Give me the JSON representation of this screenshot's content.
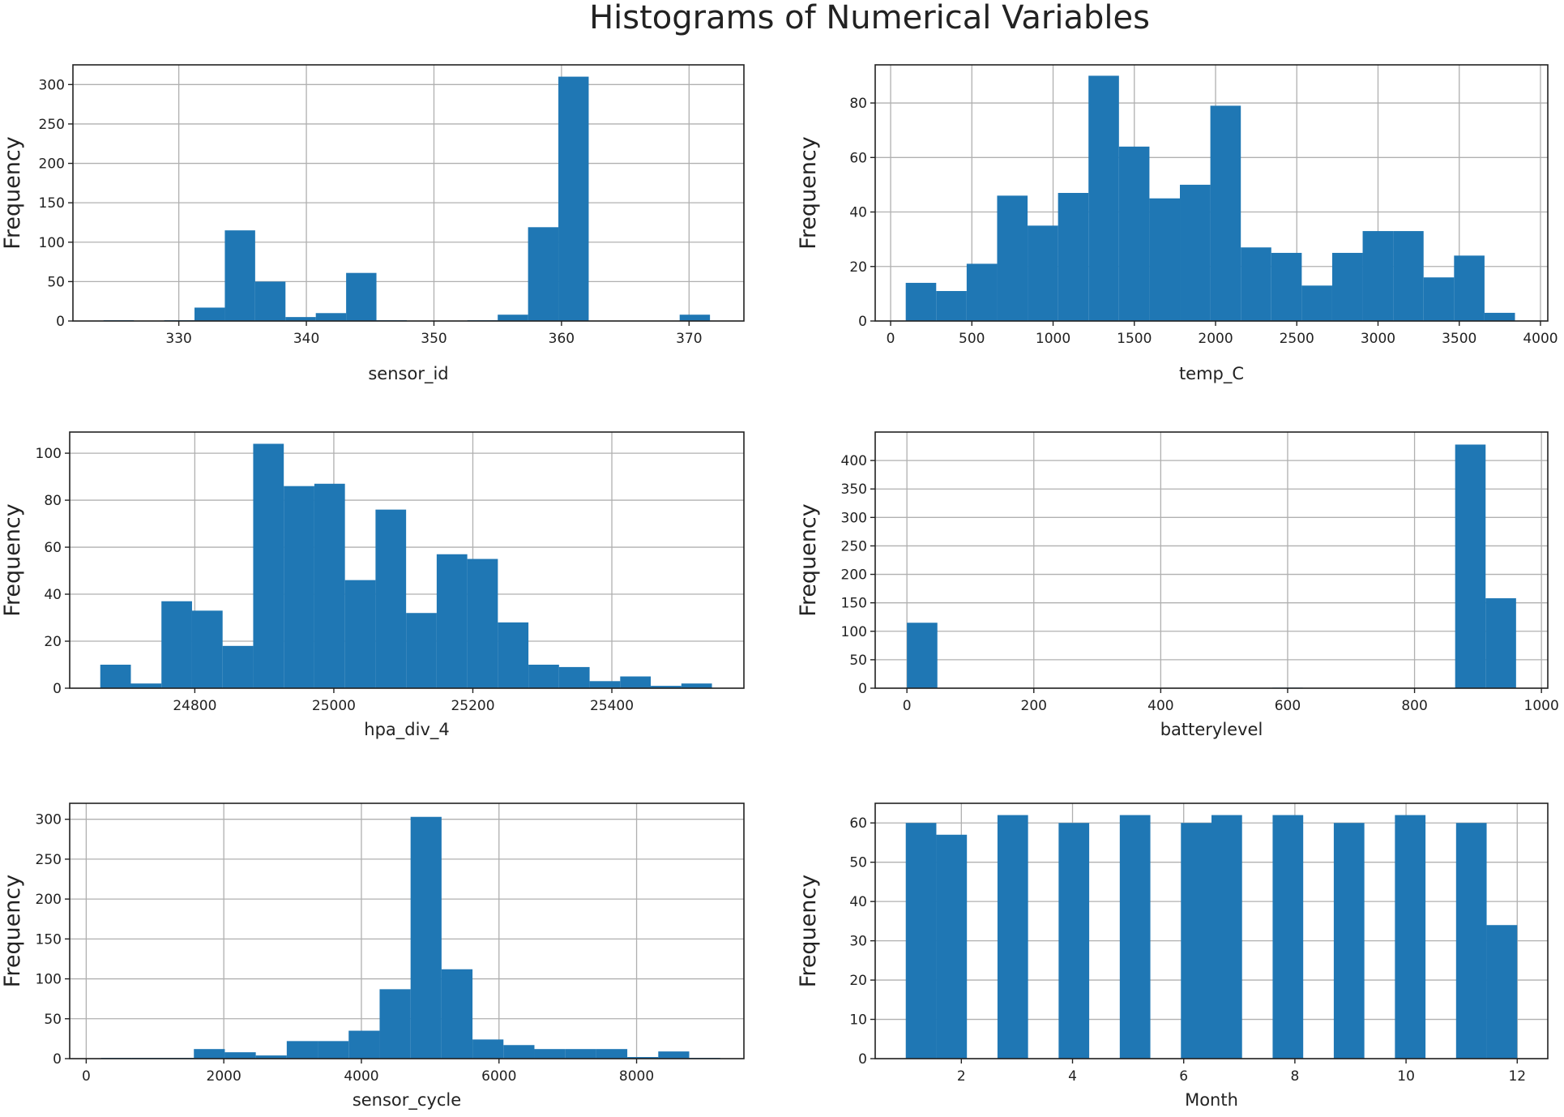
{
  "figure_title": "Histograms of Numerical Variables",
  "colors": {
    "bar": "#1f77b4",
    "grid": "#b0b0b0",
    "frame": "#222222",
    "background": "#ffffff"
  },
  "chart_data": [
    {
      "type": "bar",
      "xlabel": "sensor_id",
      "ylabel": "Frequency",
      "grid": true,
      "xlim": [
        321.7,
        374.3
      ],
      "ylim": [
        0,
        325
      ],
      "xticks": [
        330,
        340,
        350,
        360,
        370
      ],
      "yticks": [
        0,
        50,
        100,
        150,
        200,
        250,
        300
      ],
      "bin_start": 324.1,
      "bin_width": 2.377,
      "counts": [
        1,
        0,
        1,
        17,
        115,
        50,
        5,
        10,
        61,
        1,
        0,
        0,
        1,
        8,
        119,
        310,
        0,
        0,
        0,
        8
      ]
    },
    {
      "type": "bar",
      "xlabel": "temp_C",
      "ylabel": "Frequency",
      "grid": true,
      "xlim": [
        -95,
        4045
      ],
      "ylim": [
        0,
        94
      ],
      "xticks": [
        0,
        500,
        1000,
        1500,
        2000,
        2500,
        3000,
        3500,
        4000
      ],
      "yticks": [
        0,
        20,
        40,
        60,
        80
      ],
      "bin_start": 93,
      "bin_width": 187.5,
      "counts": [
        14,
        11,
        21,
        46,
        35,
        47,
        90,
        64,
        45,
        50,
        79,
        27,
        25,
        13,
        25,
        33,
        33,
        16,
        24,
        3
      ]
    },
    {
      "type": "bar",
      "xlabel": "hpa_div_4",
      "ylabel": "Frequency",
      "grid": true,
      "xlim": [
        24620,
        25590
      ],
      "ylim": [
        0,
        109
      ],
      "xticks": [
        24800,
        25000,
        25200,
        25400
      ],
      "yticks": [
        0,
        20,
        40,
        60,
        80,
        100
      ],
      "bin_start": 24664,
      "bin_width": 44,
      "counts": [
        10,
        2,
        37,
        33,
        18,
        104,
        86,
        87,
        46,
        76,
        32,
        57,
        55,
        28,
        10,
        9,
        3,
        5,
        1,
        2
      ]
    },
    {
      "type": "bar",
      "xlabel": "batterylevel",
      "ylabel": "Frequency",
      "grid": true,
      "xlim": [
        -50,
        1010
      ],
      "ylim": [
        0,
        450
      ],
      "xticks": [
        0,
        200,
        400,
        600,
        800,
        1000
      ],
      "yticks": [
        0,
        50,
        100,
        150,
        200,
        250,
        300,
        350,
        400
      ],
      "bin_start": 0,
      "bin_width": 48,
      "counts": [
        115,
        0,
        0,
        0,
        0,
        0,
        0,
        0,
        0,
        0,
        0,
        0,
        1,
        0,
        0,
        0,
        0,
        0,
        428,
        158
      ]
    },
    {
      "type": "bar",
      "xlabel": "sensor_cycle",
      "ylabel": "Frequency",
      "grid": true,
      "xlim": [
        -240,
        9560
      ],
      "ylim": [
        0,
        320
      ],
      "xticks": [
        0,
        2000,
        4000,
        6000,
        8000
      ],
      "yticks": [
        0,
        50,
        100,
        150,
        200,
        250,
        300
      ],
      "bin_start": 215,
      "bin_width": 450,
      "counts": [
        1,
        1,
        1,
        12,
        8,
        4,
        22,
        22,
        35,
        87,
        303,
        112,
        24,
        17,
        12,
        12,
        12,
        2,
        9,
        1
      ]
    },
    {
      "type": "bar",
      "xlabel": "Month",
      "ylabel": "Frequency",
      "grid": true,
      "xlim": [
        0.45,
        12.55
      ],
      "ylim": [
        0,
        65
      ],
      "xticks": [
        2,
        4,
        6,
        8,
        10,
        12
      ],
      "yticks": [
        0,
        10,
        20,
        30,
        40,
        50,
        60
      ],
      "bin_start": 1,
      "bin_width": 0.55,
      "counts": [
        60,
        57,
        0,
        62,
        0,
        60,
        0,
        62,
        0,
        60,
        62,
        0,
        62,
        0,
        60,
        0,
        62,
        0,
        60,
        34
      ]
    }
  ]
}
